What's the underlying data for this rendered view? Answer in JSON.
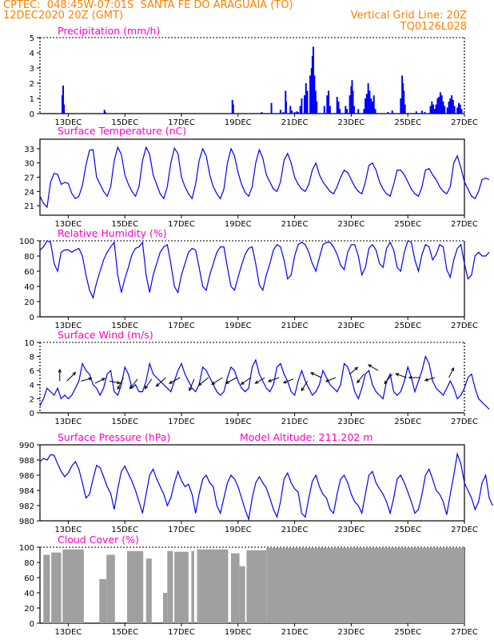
{
  "header": {
    "line1": "CPTEC:  048:45W-07:01S  SANTA FE DO ARAGUAIA (TO)",
    "line2_left": "12DEC2020 20Z (GMT)",
    "line2_right": "Vertical Grid Line: 20Z",
    "line3_right": "TQ0126L028"
  },
  "colors": {
    "header": "#ff7f00",
    "panel_title": "#ff00c8",
    "series": "#0000ff",
    "wind_line": "#0000ff",
    "wind_arrow": "#000000",
    "cloud": "#a0a0a0",
    "axis": "#000000"
  },
  "x_axis": {
    "ticks": [
      "13DEC",
      "15DEC",
      "17DEC",
      "19DEC",
      "21DEC",
      "23DEC",
      "25DEC",
      "27DEC"
    ],
    "tick_days": [
      13,
      15,
      17,
      19,
      21,
      23,
      25,
      27
    ],
    "start_day": 12.0,
    "end_day": 27.0,
    "step_hours": 3
  },
  "chart_data": [
    {
      "type": "bar",
      "title": "Precipitation (mm/h)",
      "ylim": [
        0,
        5
      ],
      "yticks": [
        "0",
        "1",
        "2",
        "3",
        "4",
        "5"
      ],
      "style": "dotted-frame",
      "x_unit": "DEC day (fraction)",
      "bars": [
        [
          12.79,
          1.2
        ],
        [
          12.82,
          1.85
        ],
        [
          12.85,
          0.6
        ],
        [
          14.28,
          0.25
        ],
        [
          14.31,
          0.1
        ],
        [
          18.8,
          0.9
        ],
        [
          18.83,
          0.6
        ],
        [
          19.84,
          0.1
        ],
        [
          20.18,
          0.7
        ],
        [
          20.5,
          0.25
        ],
        [
          20.6,
          0.1
        ],
        [
          20.68,
          1.5
        ],
        [
          20.7,
          0.8
        ],
        [
          20.85,
          0.5
        ],
        [
          20.9,
          0.2
        ],
        [
          21.0,
          0.1
        ],
        [
          21.08,
          0.15
        ],
        [
          21.12,
          0.1
        ],
        [
          21.2,
          0.5
        ],
        [
          21.25,
          1.0
        ],
        [
          21.35,
          1.2
        ],
        [
          21.4,
          2.0
        ],
        [
          21.45,
          1.5
        ],
        [
          21.55,
          2.5
        ],
        [
          21.6,
          3.0
        ],
        [
          21.63,
          3.8
        ],
        [
          21.66,
          4.4
        ],
        [
          21.7,
          2.5
        ],
        [
          21.74,
          1.5
        ],
        [
          21.78,
          0.8
        ],
        [
          22.05,
          0.5
        ],
        [
          22.15,
          1.2
        ],
        [
          22.2,
          1.5
        ],
        [
          22.25,
          0.5
        ],
        [
          22.5,
          1.1
        ],
        [
          22.55,
          0.8
        ],
        [
          22.6,
          0.3
        ],
        [
          22.8,
          0.5
        ],
        [
          22.85,
          0.3
        ],
        [
          22.95,
          1.2
        ],
        [
          23.0,
          1.8
        ],
        [
          23.03,
          2.2
        ],
        [
          23.06,
          1.5
        ],
        [
          23.1,
          0.5
        ],
        [
          23.25,
          0.3
        ],
        [
          23.45,
          0.3
        ],
        [
          23.5,
          1.0
        ],
        [
          23.55,
          1.3
        ],
        [
          23.6,
          2.0
        ],
        [
          23.65,
          1.5
        ],
        [
          23.7,
          1.0
        ],
        [
          23.75,
          0.8
        ],
        [
          23.8,
          1.2
        ],
        [
          23.85,
          0.3
        ],
        [
          24.3,
          0.1
        ],
        [
          24.45,
          0.2
        ],
        [
          24.75,
          1.0
        ],
        [
          24.8,
          2.5
        ],
        [
          24.83,
          2.0
        ],
        [
          24.86,
          1.5
        ],
        [
          24.9,
          0.6
        ],
        [
          25.3,
          0.15
        ],
        [
          25.5,
          0.2
        ],
        [
          25.6,
          0.1
        ],
        [
          25.8,
          0.5
        ],
        [
          25.85,
          0.8
        ],
        [
          25.9,
          0.6
        ],
        [
          25.95,
          0.3
        ],
        [
          26.0,
          0.6
        ],
        [
          26.05,
          1.0
        ],
        [
          26.1,
          1.1
        ],
        [
          26.15,
          1.4
        ],
        [
          26.2,
          1.2
        ],
        [
          26.25,
          0.8
        ],
        [
          26.3,
          0.5
        ],
        [
          26.4,
          0.4
        ],
        [
          26.45,
          0.8
        ],
        [
          26.5,
          1.0
        ],
        [
          26.55,
          1.2
        ],
        [
          26.6,
          0.9
        ],
        [
          26.65,
          0.5
        ],
        [
          26.75,
          0.4
        ],
        [
          26.8,
          0.7
        ],
        [
          26.85,
          0.6
        ],
        [
          26.9,
          0.3
        ]
      ]
    },
    {
      "type": "line",
      "title": "Surface Temperature (nC)",
      "ylim": [
        19,
        35
      ],
      "yticks": [
        "21",
        "24",
        "27",
        "30",
        "33"
      ],
      "ytick_values": [
        21,
        24,
        27,
        30,
        33
      ],
      "style": "solid-frame",
      "values": [
        23.0,
        21.5,
        20.7,
        26.0,
        27.8,
        27.6,
        25.5,
        25.9,
        25.7,
        23.6,
        22.5,
        23.0,
        25.3,
        29.5,
        32.7,
        32.8,
        27.0,
        25.5,
        24.0,
        23.0,
        25.0,
        30.5,
        33.3,
        31.8,
        27.5,
        25.5,
        24.0,
        23.0,
        25.0,
        30.5,
        33.3,
        31.8,
        27.5,
        25.5,
        23.5,
        22.5,
        25.0,
        30.0,
        33.1,
        32.0,
        27.0,
        25.0,
        23.5,
        22.5,
        25.5,
        30.5,
        33.0,
        31.5,
        27.5,
        25.0,
        23.5,
        22.5,
        24.5,
        30.0,
        33.0,
        31.5,
        28.0,
        25.5,
        23.8,
        23.0,
        25.0,
        30.0,
        32.8,
        31.0,
        27.5,
        26.0,
        24.5,
        24.0,
        26.0,
        30.5,
        32.0,
        30.0,
        27.0,
        25.5,
        24.5,
        24.0,
        25.5,
        28.5,
        30.0,
        27.5,
        26.0,
        25.0,
        24.0,
        23.5,
        25.0,
        27.0,
        28.5,
        28.0,
        26.5,
        25.0,
        24.0,
        23.5,
        26.0,
        29.5,
        30.0,
        28.5,
        26.0,
        24.5,
        23.5,
        23.0,
        25.5,
        28.5,
        28.5,
        27.5,
        26.0,
        24.5,
        23.5,
        23.0,
        25.0,
        28.5,
        28.8,
        27.5,
        26.5,
        25.0,
        24.0,
        23.5,
        25.0,
        30.0,
        31.5,
        29.0,
        26.0,
        24.5,
        23.0,
        22.5,
        24.0,
        26.5,
        26.8,
        26.5
      ]
    },
    {
      "type": "line",
      "title": "Relative Humidity (%)",
      "ylim": [
        0,
        100
      ],
      "yticks": [
        "0",
        "20",
        "40",
        "60",
        "80",
        "100"
      ],
      "ytick_values": [
        0,
        20,
        40,
        60,
        80,
        100
      ],
      "style": "dotted-top",
      "values": [
        88,
        92,
        100,
        98,
        70,
        60,
        85,
        88,
        88,
        85,
        88,
        90,
        80,
        55,
        35,
        25,
        45,
        60,
        75,
        85,
        92,
        98,
        55,
        32,
        50,
        65,
        82,
        90,
        92,
        98,
        55,
        32,
        55,
        70,
        85,
        92,
        95,
        70,
        40,
        32,
        55,
        70,
        85,
        90,
        88,
        65,
        40,
        35,
        55,
        70,
        85,
        92,
        92,
        65,
        40,
        35,
        52,
        68,
        82,
        90,
        92,
        70,
        42,
        35,
        55,
        70,
        88,
        95,
        92,
        75,
        50,
        55,
        80,
        95,
        98,
        95,
        85,
        70,
        60,
        78,
        95,
        98,
        98,
        92,
        82,
        68,
        62,
        85,
        95,
        95,
        80,
        55,
        65,
        90,
        95,
        88,
        70,
        65,
        90,
        98,
        88,
        65,
        60,
        85,
        100,
        98,
        75,
        60,
        82,
        95,
        92,
        75,
        82,
        95,
        92,
        62,
        52,
        75,
        90,
        95,
        70,
        50,
        55,
        80,
        85,
        80,
        80,
        85
      ]
    },
    {
      "type": "line",
      "title": "Surface Wind (m/s)",
      "ylim": [
        0,
        10
      ],
      "yticks": [
        "0",
        "2",
        "4",
        "6",
        "8",
        "10"
      ],
      "ytick_values": [
        0,
        2,
        4,
        6,
        8,
        10
      ],
      "style": "dotted-frame",
      "values": [
        1.0,
        2.0,
        3.5,
        3.0,
        2.5,
        3.5,
        2.0,
        2.5,
        2.0,
        2.5,
        3.5,
        4.5,
        7.0,
        6.0,
        5.5,
        4.0,
        3.5,
        2.5,
        3.5,
        5.5,
        6.0,
        3.0,
        2.5,
        4.0,
        6.5,
        5.5,
        3.5,
        4.0,
        3.0,
        3.0,
        4.5,
        7.0,
        5.5,
        5.0,
        4.5,
        4.0,
        3.5,
        3.0,
        4.5,
        6.0,
        7.0,
        5.5,
        4.5,
        3.5,
        3.0,
        4.0,
        6.5,
        6.0,
        5.0,
        4.0,
        3.0,
        2.5,
        3.0,
        5.0,
        6.5,
        6.0,
        4.5,
        3.5,
        3.0,
        3.5,
        6.5,
        7.5,
        5.5,
        4.5,
        3.5,
        3.0,
        4.0,
        6.5,
        7.0,
        5.5,
        4.5,
        3.0,
        2.5,
        4.5,
        6.0,
        4.5,
        3.5,
        2.5,
        3.0,
        4.0,
        6.0,
        5.0,
        4.0,
        3.5,
        3.0,
        4.0,
        7.0,
        6.5,
        5.0,
        3.0,
        2.0,
        3.5,
        5.5,
        6.0,
        4.0,
        3.0,
        2.5,
        2.0,
        4.5,
        5.5,
        3.0,
        2.5,
        3.0,
        4.5,
        6.5,
        5.0,
        3.0,
        4.5,
        6.0,
        8.0,
        7.0,
        4.5,
        3.5,
        3.0,
        2.5,
        3.5,
        4.5,
        3.5,
        2.0,
        2.5,
        3.5,
        5.0,
        5.5,
        3.5,
        2.0,
        1.5,
        1.0,
        0.5
      ],
      "vectors": [
        [
          12.7,
          4.5,
          0,
          1.2
        ],
        [
          12.95,
          4.5,
          0.9,
          0.9
        ],
        [
          13.45,
          4.5,
          1.1,
          0.3
        ],
        [
          13.95,
          4.2,
          1.0,
          0.5
        ],
        [
          14.45,
          4.5,
          1.1,
          -0.2
        ],
        [
          14.95,
          5.0,
          -0.6,
          -1.2
        ],
        [
          15.45,
          4.8,
          -0.8,
          -1.0
        ],
        [
          15.95,
          4.8,
          -0.7,
          -1.0
        ],
        [
          16.45,
          5.0,
          -1.0,
          -0.9
        ],
        [
          16.95,
          5.0,
          -1.1,
          -0.6
        ],
        [
          17.45,
          4.8,
          -0.5,
          -1.2
        ],
        [
          17.95,
          5.0,
          -1.0,
          -0.8
        ],
        [
          18.45,
          5.0,
          -1.1,
          -0.7
        ],
        [
          18.95,
          5.0,
          -1.1,
          -0.6
        ],
        [
          19.45,
          5.0,
          -1.0,
          -0.7
        ],
        [
          19.95,
          5.0,
          -1.0,
          -0.6
        ],
        [
          20.45,
          5.0,
          -1.1,
          -0.4
        ],
        [
          20.95,
          4.8,
          -1.0,
          -0.4
        ],
        [
          21.45,
          4.5,
          -0.6,
          -1.0
        ],
        [
          21.95,
          5.0,
          -1.1,
          0.5
        ],
        [
          22.45,
          5.0,
          -1.0,
          -0.4
        ],
        [
          22.95,
          5.5,
          0.8,
          0.7
        ],
        [
          23.45,
          5.5,
          -0.7,
          -0.9
        ],
        [
          23.95,
          6.0,
          -1.0,
          0.6
        ],
        [
          24.45,
          5.5,
          -0.8,
          -1.0
        ],
        [
          24.95,
          5.0,
          -1.1,
          0.4
        ],
        [
          25.45,
          5.0,
          -1.2,
          0.0
        ],
        [
          25.95,
          5.0,
          -1.0,
          -0.3
        ],
        [
          26.45,
          5.0,
          0.5,
          1.0
        ]
      ]
    },
    {
      "type": "line",
      "title": "Surface Pressure (hPa)",
      "annotation": "Model Altitude: 211.202 m",
      "ylim": [
        980,
        990
      ],
      "yticks": [
        "980",
        "982",
        "984",
        "986",
        "988",
        "990"
      ],
      "ytick_values": [
        980,
        982,
        984,
        986,
        988,
        990
      ],
      "style": "solid-frame",
      "values": [
        987.8,
        988.2,
        988.0,
        988.7,
        988.6,
        987.5,
        986.5,
        985.8,
        986.3,
        987.2,
        987.8,
        986.8,
        985.0,
        983.0,
        983.5,
        985.5,
        987.3,
        987.0,
        985.8,
        984.5,
        983.6,
        981.5,
        984.2,
        986.5,
        987.2,
        986.2,
        985.2,
        984.0,
        982.5,
        981.0,
        983.5,
        986.0,
        986.8,
        985.5,
        984.5,
        983.5,
        982.0,
        983.0,
        985.0,
        986.5,
        985.3,
        984.5,
        984.8,
        983.5,
        981.0,
        983.5,
        985.5,
        986.0,
        985.0,
        984.5,
        982.0,
        981.0,
        983.0,
        985.0,
        986.0,
        985.5,
        984.5,
        983.0,
        981.5,
        980.2,
        983.0,
        985.0,
        985.8,
        985.0,
        984.3,
        983.0,
        981.5,
        980.5,
        982.5,
        985.5,
        986.3,
        985.0,
        984.2,
        983.8,
        981.0,
        980.5,
        983.0,
        985.2,
        986.0,
        984.5,
        983.5,
        983.0,
        981.5,
        981.0,
        983.5,
        985.5,
        986.0,
        985.0,
        983.5,
        982.5,
        982.0,
        981.0,
        983.5,
        986.0,
        986.5,
        985.0,
        984.2,
        983.5,
        982.5,
        981.0,
        983.0,
        985.5,
        986.0,
        985.0,
        983.8,
        982.5,
        981.0,
        981.5,
        983.5,
        986.0,
        986.8,
        985.5,
        984.0,
        983.5,
        982.5,
        980.8,
        983.5,
        986.0,
        988.8,
        987.5,
        985.0,
        984.0,
        983.0,
        981.5,
        982.5,
        985.0,
        986.0,
        983.0,
        982.0
      ]
    },
    {
      "type": "area",
      "title": "Cloud Cover (%)",
      "ylim": [
        0,
        100
      ],
      "yticks": [
        "0",
        "20",
        "40",
        "60",
        "80",
        "100"
      ],
      "ytick_values": [
        0,
        20,
        40,
        60,
        80,
        100
      ],
      "style": "dotted-top",
      "segments": [
        [
          12.12,
          12.35,
          90
        ],
        [
          12.4,
          12.75,
          93
        ],
        [
          12.8,
          13.55,
          97
        ],
        [
          14.1,
          14.35,
          58
        ],
        [
          14.35,
          14.65,
          90
        ],
        [
          15.08,
          15.65,
          95
        ],
        [
          15.75,
          15.95,
          85
        ],
        [
          16.35,
          16.5,
          40
        ],
        [
          16.5,
          16.7,
          95
        ],
        [
          16.75,
          17.25,
          94
        ],
        [
          17.35,
          17.45,
          95
        ],
        [
          17.55,
          18.65,
          97
        ],
        [
          18.75,
          19.05,
          92
        ],
        [
          19.05,
          19.25,
          75
        ],
        [
          19.3,
          20.0,
          96
        ],
        [
          20.0,
          27.0,
          99
        ]
      ]
    }
  ]
}
